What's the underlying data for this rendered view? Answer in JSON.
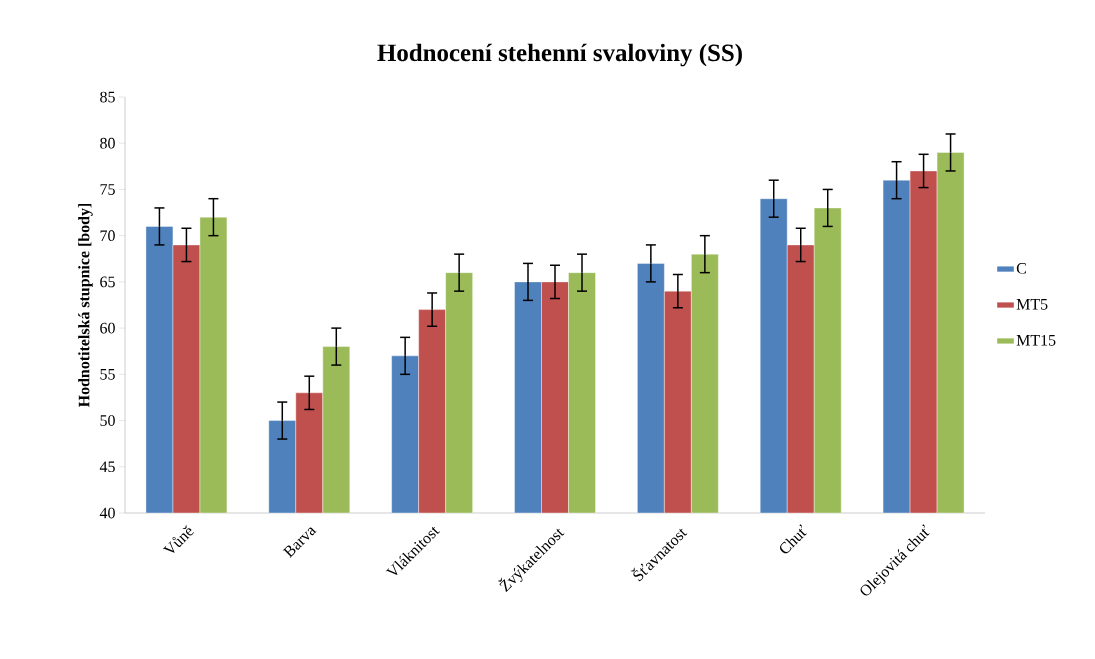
{
  "chart_data": {
    "type": "bar",
    "title": "Hodnocení stehenní svaloviny (SS)",
    "ylabel": "Hodnotitelská stupnice [body]",
    "categories": [
      "Vůně",
      "Barva",
      "Vláknitost",
      "Žvýkatelnost",
      "Šťavnatost",
      "Chuť",
      "Olejovitá chuť"
    ],
    "series": [
      {
        "name": "C",
        "color": "#4f81bd",
        "values": [
          71,
          50,
          57,
          65,
          67,
          74,
          76
        ],
        "errors": [
          2,
          2,
          2,
          2,
          2,
          2,
          2
        ]
      },
      {
        "name": "MT5",
        "color": "#c0504d",
        "values": [
          69,
          53,
          62,
          65,
          64,
          69,
          77
        ],
        "errors": [
          1.8,
          1.8,
          1.8,
          1.8,
          1.8,
          1.8,
          1.8
        ]
      },
      {
        "name": "MT15",
        "color": "#9bbb59",
        "values": [
          72,
          58,
          66,
          66,
          68,
          73,
          79
        ],
        "errors": [
          2,
          2,
          2,
          2,
          2,
          2,
          2
        ]
      }
    ],
    "ylim": [
      40,
      85
    ],
    "yticks": [
      40,
      45,
      50,
      55,
      60,
      65,
      70,
      75,
      80,
      85
    ],
    "grid": false,
    "legend": "right"
  }
}
